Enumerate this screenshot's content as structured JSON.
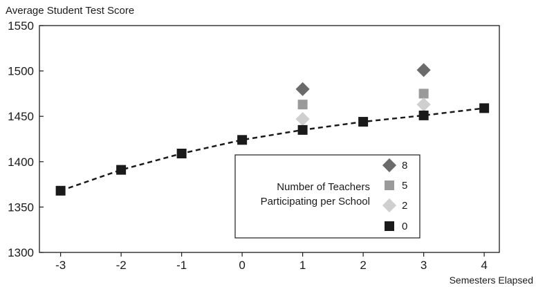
{
  "chart_data": {
    "type": "scatter",
    "title": "",
    "ylabel": "Average Student Test Score",
    "xlabel": "Semesters Elapsed",
    "xlim": [
      -3.35,
      4.25
    ],
    "ylim": [
      1300,
      1550
    ],
    "xticks": [
      "-3",
      "-2",
      "-1",
      "0",
      "1",
      "2",
      "3",
      "4"
    ],
    "yticks": [
      "1300",
      "1350",
      "1400",
      "1450",
      "1500",
      "1550"
    ],
    "grid": false,
    "legend": {
      "title_lines": [
        "Number of Teachers",
        "Participating per School"
      ],
      "placement": "bottom-center"
    },
    "series": [
      {
        "name": "8",
        "marker": "diamond",
        "color": "#6b6b6b",
        "points": [
          [
            1,
            1480
          ],
          [
            3,
            1501
          ]
        ]
      },
      {
        "name": "5",
        "marker": "square",
        "color": "#9a9a9a",
        "points": [
          [
            1,
            1463
          ],
          [
            3,
            1475
          ]
        ]
      },
      {
        "name": "2",
        "marker": "diamond",
        "color": "#cfcfcf",
        "points": [
          [
            1,
            1447
          ],
          [
            3,
            1463
          ]
        ]
      },
      {
        "name": "0",
        "marker": "square",
        "color": "#1a1a1a",
        "line": "dashed",
        "points": [
          [
            -3,
            1368
          ],
          [
            -2,
            1391
          ],
          [
            -1,
            1409
          ],
          [
            0,
            1424
          ],
          [
            1,
            1435
          ],
          [
            2,
            1444
          ],
          [
            3,
            1451
          ],
          [
            4,
            1459
          ]
        ]
      }
    ]
  }
}
